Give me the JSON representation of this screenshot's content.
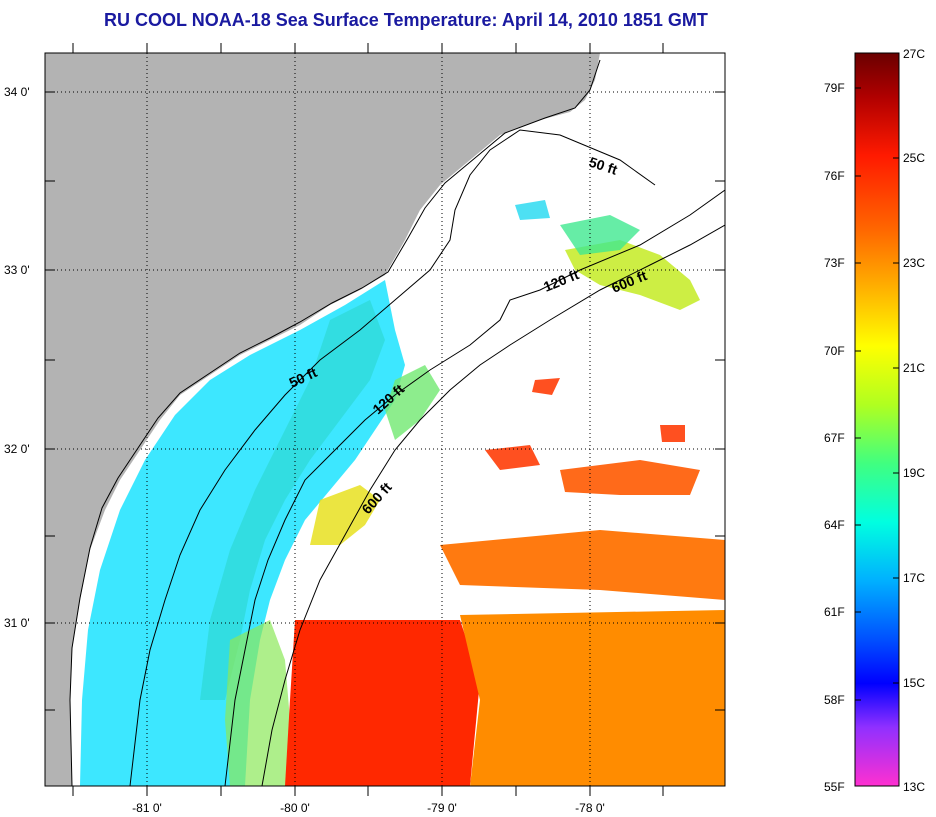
{
  "title": "RU COOL  NOAA-18  Sea Surface Temperature:  April 14, 2010 1851 GMT",
  "map": {
    "lat_labels": [
      "34 0'",
      "33 0'",
      "32 0'",
      "31 0'"
    ],
    "lon_labels": [
      "-81 0'",
      "-80 0'",
      "-79 0'",
      "-78 0'"
    ],
    "contour_labels": [
      "50 ft",
      "120 ft",
      "600 ft",
      "50 ft",
      "120 ft",
      "600 ft"
    ],
    "land_color": "#b3b3b3",
    "no_data_color": "#ffffff"
  },
  "colorbar": {
    "fahrenheit_labels": [
      "79F",
      "76F",
      "73F",
      "70F",
      "67F",
      "64F",
      "61F",
      "58F",
      "55F"
    ],
    "celsius_labels": [
      "27C",
      "25C",
      "23C",
      "21C",
      "19C",
      "17C",
      "15C",
      "13C"
    ],
    "colors": [
      "#7a0000",
      "#d40000",
      "#ff2a00",
      "#ff6a00",
      "#ffb000",
      "#ffee00",
      "#c8ff00",
      "#6aff40",
      "#00ffc0",
      "#00d8ff",
      "#0090ff",
      "#0020ff",
      "#4a2aff",
      "#b000ff",
      "#ff40d0"
    ]
  }
}
